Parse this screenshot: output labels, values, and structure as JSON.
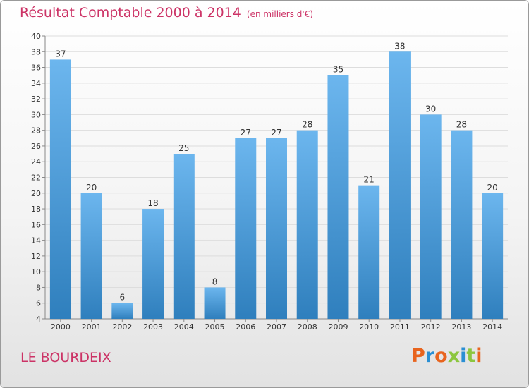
{
  "header": {
    "title": "Résultat Comptable 2000 à 2014",
    "subtitle": "(en milliers d'€)"
  },
  "footer": {
    "place": "LE BOURDEIX",
    "logo": "Proxiti"
  },
  "colors": {
    "bar_light": "#6cb6ee",
    "bar_dark": "#2f7fbd",
    "title": "#cc3366",
    "logo": [
      "#e8641e",
      "#2a8fd4",
      "#e8641e",
      "#8cc63f",
      "#2a8fd4",
      "#8cc63f",
      "#e8641e"
    ]
  },
  "chart_data": {
    "type": "bar",
    "title": "Résultat Comptable 2000 à 2014",
    "categories": [
      "2000",
      "2001",
      "2002",
      "2003",
      "2004",
      "2005",
      "2006",
      "2007",
      "2008",
      "2009",
      "2010",
      "2011",
      "2012",
      "2013",
      "2014"
    ],
    "values": [
      37,
      20,
      6,
      18,
      25,
      8,
      27,
      27,
      28,
      35,
      21,
      38,
      30,
      28,
      20
    ],
    "ylim": [
      4,
      40
    ],
    "yticks": [
      4,
      6,
      8,
      10,
      12,
      14,
      16,
      18,
      20,
      22,
      24,
      26,
      28,
      30,
      32,
      34,
      36,
      38,
      40
    ],
    "grid": true,
    "legend": "none"
  }
}
